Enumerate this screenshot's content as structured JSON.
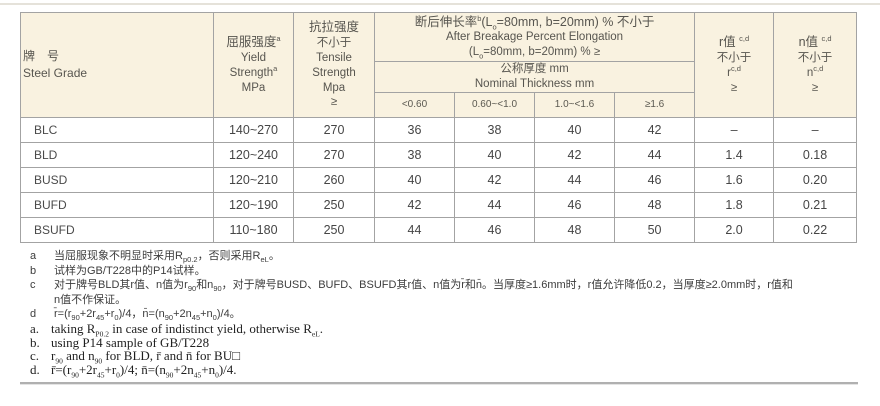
{
  "colors": {
    "header_bg": "#f9f2e0",
    "grid_border": "#a3a3a3",
    "outer_border": "#8d8d8d",
    "rule_gray": "#b0b0b0"
  },
  "table": {
    "header": {
      "grade_zh": "牌　号",
      "grade_en": "Steel Grade",
      "yield_lines": [
        "屈服强度<sup>a</sup>",
        "Yield",
        "Strength<sup>a</sup>",
        "MPa"
      ],
      "tensile_lines": [
        "抗拉强度",
        "不小于",
        "Tensile",
        "Strength",
        "Mpa",
        "≥"
      ],
      "elongation_lines": [
        "断后伸长率<sup>b</sup>(L<sub>o</sub>=80mm, b=20mm) % 不小于",
        "After Breakage Percent Elongation",
        "(L<sub>o</sub>=80mm, b=20mm) % ≥"
      ],
      "thickness_lines": [
        "公称厚度 mm",
        "Nominal Thickness mm"
      ],
      "ranges": [
        "<0.60",
        "0.60~<1.0",
        "1.0~<1.6",
        "≥1.6"
      ],
      "r_lines": [
        "r值 <sup>c,d</sup>",
        "不小于",
        "r<sup>c,d</sup>",
        "≥"
      ],
      "n_lines": [
        "n值 <sup>c,d</sup>",
        "不小于",
        "n<sup>c,d</sup>",
        "≥"
      ]
    },
    "rows": [
      {
        "grade": "BLC",
        "values": [
          "140~270",
          "270",
          "36",
          "38",
          "40",
          "42",
          "–",
          "–"
        ]
      },
      {
        "grade": "BLD",
        "values": [
          "120~240",
          "270",
          "38",
          "40",
          "42",
          "44",
          "1.4",
          "0.18"
        ]
      },
      {
        "grade": "BUSD",
        "values": [
          "120~210",
          "260",
          "40",
          "42",
          "44",
          "46",
          "1.6",
          "0.20"
        ]
      },
      {
        "grade": "BUFD",
        "values": [
          "120~190",
          "250",
          "42",
          "44",
          "46",
          "48",
          "1.8",
          "0.21"
        ]
      },
      {
        "grade": "BSUFD",
        "values": [
          "110~180",
          "250",
          "44",
          "46",
          "48",
          "50",
          "2.0",
          "0.22"
        ]
      }
    ]
  },
  "footnotes_zh": [
    {
      "marker": "a",
      "html": "当屈服现象不明显时采用R<sub>p0.2</sub>，否则采用R<sub>eL</sub>。"
    },
    {
      "marker": "b",
      "html": "试样为GB/T228中的P14试样。"
    },
    {
      "marker": "c",
      "html": "对于牌号BLD其r值、n值为r<sub>90</sub>和n<sub>90</sub>，对于牌号BUSD、BUFD、BSUFD其r值、n值为r̄和n̄。当厚度≥1.6mm时，r值允许降低0.2，当厚度≥2.0mm时，r值和<br>n值不作保证。"
    },
    {
      "marker": "d",
      "html": "r̄=(r<sub>90</sub>+2r<sub>45</sub>+r<sub>0</sub>)/4，n̄=(n<sub>90</sub>+2n<sub>45</sub>+n<sub>0</sub>)/4。"
    }
  ],
  "footnotes_en": [
    {
      "marker": "a.",
      "html": "taking R<sub>P0.2</sub> in case of indistinct yield, otherwise R<sub>eL</sub>."
    },
    {
      "marker": "b.",
      "html": "using P14 sample of GB/T228"
    },
    {
      "marker": "c.",
      "html": "r<sub>90</sub> and n<sub>90</sub> for BLD, r̄ and n̄ for BU□"
    },
    {
      "marker": "d.",
      "html": "r̄=(r<sub>90</sub>+2r<sub>45</sub>+r<sub>0</sub>)/4; n̄=(n<sub>90</sub>+2n<sub>45</sub>+n<sub>0</sub>)/4."
    }
  ]
}
